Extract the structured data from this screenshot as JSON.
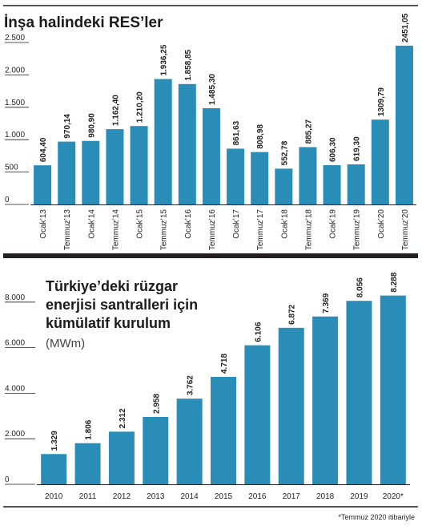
{
  "chart_data": [
    {
      "type": "bar",
      "title": "İnşa halindeki RES’ler",
      "categories": [
        "Ocak’13",
        "Temmuz’13",
        "Ocak’14",
        "Temmuz’14",
        "Ocak’15",
        "Temmuz’15",
        "Ocak’16",
        "Temmuz’16",
        "Ocak’17",
        "Temmuz’17",
        "Ocak’18",
        "Temmuz’18",
        "Ocak’19",
        "Temmuz’19",
        "Ocak’20",
        "Temmuz’20"
      ],
      "values": [
        604.4,
        970.14,
        980.9,
        1162.4,
        1210.2,
        1936.25,
        1858.85,
        1485.3,
        861.63,
        808.98,
        552.78,
        885.27,
        606.3,
        619.3,
        1309.79,
        2451.05
      ],
      "value_labels": [
        "604,40",
        "970,14",
        "980,90",
        "1.162,40",
        "1.210,20",
        "1.936,25",
        "1.858,85",
        "1.485,30",
        "861,63",
        "808,98",
        "552,78",
        "885,27",
        "606,30",
        "619,30",
        "1309,79",
        "2451,05"
      ],
      "yticks": [
        0,
        500,
        1000,
        1500,
        2000,
        2500
      ],
      "ytick_labels": [
        "0",
        "500",
        "1.000",
        "1.500",
        "2.000",
        "2.500"
      ],
      "ylim": [
        0,
        2500
      ],
      "bar_color": "#2a8db8",
      "grid": false
    },
    {
      "type": "bar",
      "title_lines": [
        "Türkiye’deki rüzgar",
        "enerjisi santralleri için",
        "kümülatif kurulum"
      ],
      "unit": "(MWm)",
      "categories": [
        "2010",
        "2011",
        "2012",
        "2013",
        "2014",
        "2015",
        "2016",
        "2017",
        "2018",
        "2019",
        "2020*"
      ],
      "values": [
        1329,
        1806,
        2312,
        2958,
        3762,
        4718,
        6106,
        6872,
        7369,
        8056,
        8288
      ],
      "value_labels": [
        "1.329",
        "1.806",
        "2.312",
        "2.958",
        "3.762",
        "4.718",
        "6.106",
        "6.872",
        "7.369",
        "8.056",
        "8.288"
      ],
      "yticks": [
        0,
        2000,
        4000,
        6000,
        8000
      ],
      "ytick_labels": [
        "0",
        "2.000",
        "4.000",
        "6.000",
        "8.000"
      ],
      "ylim": [
        0,
        8600
      ],
      "bar_color": "#2a8db8",
      "grid": false,
      "footnote": "*Temmuz 2020 itibariyle"
    }
  ]
}
